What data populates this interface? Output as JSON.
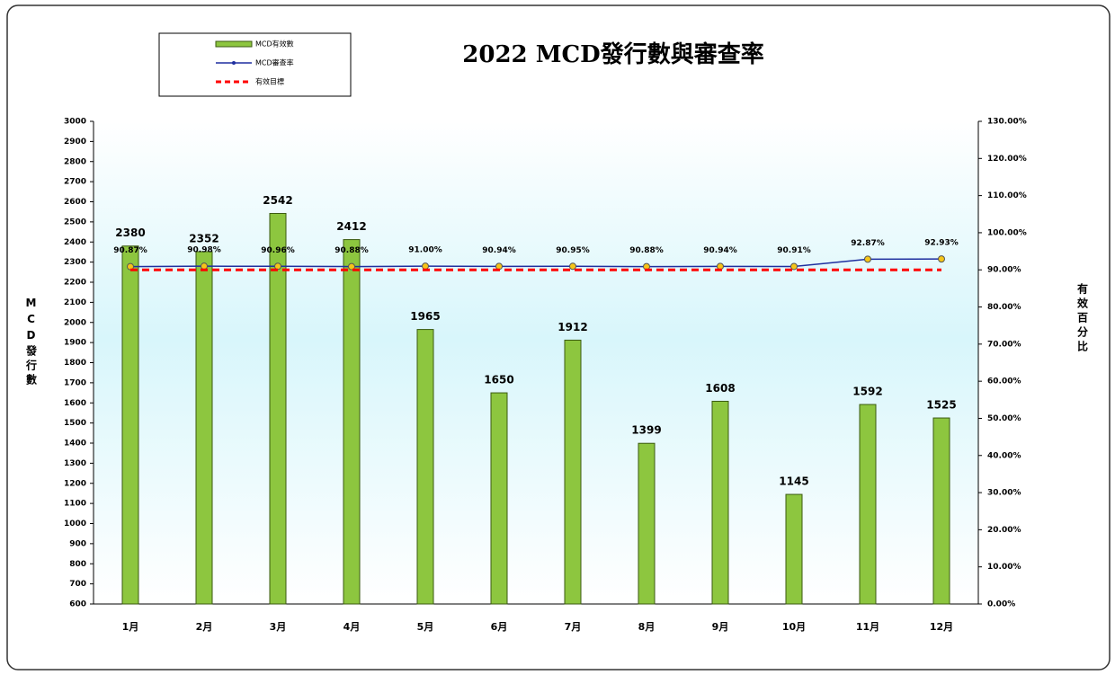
{
  "chart_data": {
    "type": "combo",
    "title": "2022 MCD發行數與審查率",
    "y_label": "MCD發行數",
    "y2_label": "有效百分比",
    "categories": [
      "1月",
      "2月",
      "3月",
      "4月",
      "5月",
      "6月",
      "7月",
      "8月",
      "9月",
      "10月",
      "11月",
      "12月"
    ],
    "series": [
      {
        "name": "MCD有效數",
        "type": "bar",
        "color": "#8dc63f",
        "values": [
          2380,
          2352,
          2542,
          2412,
          1965,
          1650,
          1912,
          1399,
          1608,
          1145,
          1592,
          1525
        ]
      },
      {
        "name": "MCD審查率",
        "type": "line",
        "axis": "y2",
        "color": "#1f2f9f",
        "values": [
          90.87,
          90.98,
          90.96,
          90.88,
          91.0,
          90.94,
          90.95,
          90.88,
          90.94,
          90.91,
          92.87,
          92.93
        ],
        "value_labels": [
          "90.87%",
          "90.98%",
          "90.96%",
          "90.88%",
          "91.00%",
          "90.94%",
          "90.95%",
          "90.88%",
          "90.94%",
          "90.91%",
          "92.87%",
          "92.93%"
        ]
      },
      {
        "name": "有效目標",
        "type": "dashed",
        "axis": "y2",
        "color": "#ff0000",
        "values": [
          90,
          90,
          90,
          90,
          90,
          90,
          90,
          90,
          90,
          90,
          90,
          90
        ]
      }
    ],
    "ylim": [
      600,
      3000
    ],
    "yticks": [
      600,
      700,
      800,
      900,
      1000,
      1100,
      1200,
      1300,
      1400,
      1500,
      1600,
      1700,
      1800,
      1900,
      2000,
      2100,
      2200,
      2300,
      2400,
      2500,
      2600,
      2700,
      2800,
      2900,
      3000
    ],
    "y2lim": [
      0,
      130
    ],
    "y2ticks": [
      {
        "value": 0,
        "label": "0.00%"
      },
      {
        "value": 10,
        "label": "10.00%"
      },
      {
        "value": 20,
        "label": "20.00%"
      },
      {
        "value": 30,
        "label": "30.00%"
      },
      {
        "value": 40,
        "label": "40.00%"
      },
      {
        "value": 50,
        "label": "50.00%"
      },
      {
        "value": 60,
        "label": "60.00%"
      },
      {
        "value": 70,
        "label": "70.00%"
      },
      {
        "value": 80,
        "label": "80.00%"
      },
      {
        "value": 90,
        "label": "90.00%"
      },
      {
        "value": 100,
        "label": "100.00%"
      },
      {
        "value": 110,
        "label": "110.00%"
      },
      {
        "value": 120,
        "label": "120.00%"
      },
      {
        "value": 130,
        "label": "130.00%"
      }
    ],
    "legend": "top-left"
  }
}
